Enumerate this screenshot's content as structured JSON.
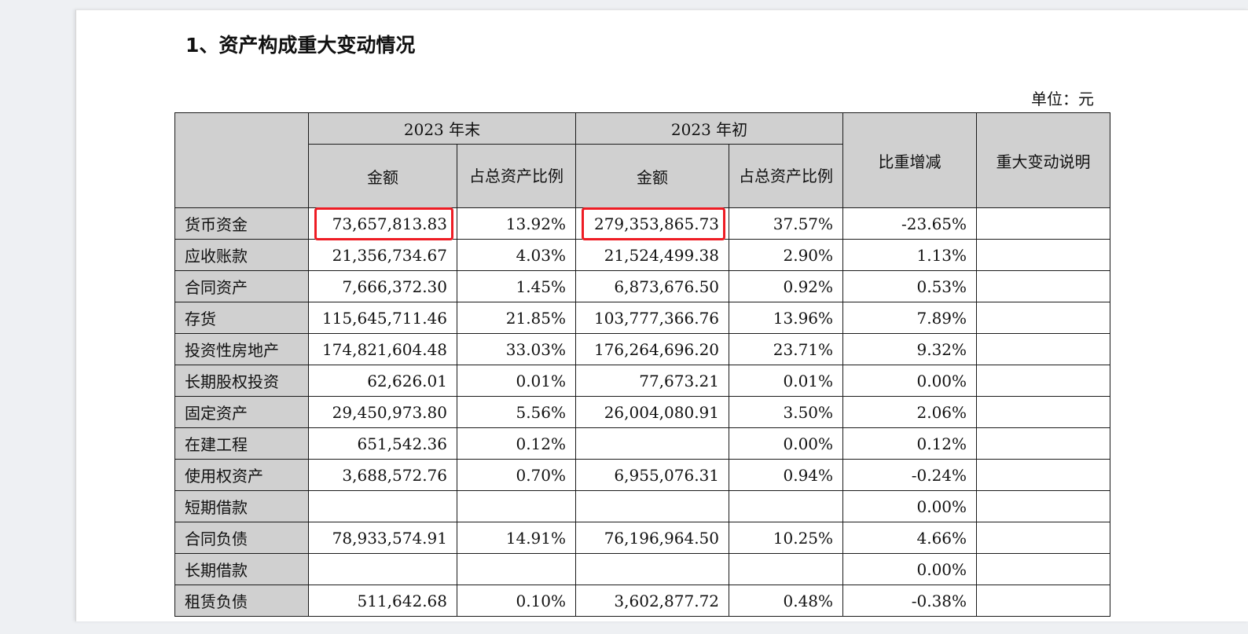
{
  "heading": "1、资产构成重大变动情况",
  "unit": "单位：元",
  "columns": {
    "end_2023": "2023 年末",
    "begin_2023": "2023 年初",
    "amount": "金额",
    "ratio": "占总资产比例",
    "change": "比重增减",
    "explanation": "重大变动说明"
  },
  "rows": [
    {
      "item": "货币资金",
      "end_amount": "73,657,813.83",
      "end_ratio": "13.92%",
      "begin_amount": "279,353,865.73",
      "begin_ratio": "37.57%",
      "change": "-23.65%",
      "note": ""
    },
    {
      "item": "应收账款",
      "end_amount": "21,356,734.67",
      "end_ratio": "4.03%",
      "begin_amount": "21,524,499.38",
      "begin_ratio": "2.90%",
      "change": "1.13%",
      "note": ""
    },
    {
      "item": "合同资产",
      "end_amount": "7,666,372.30",
      "end_ratio": "1.45%",
      "begin_amount": "6,873,676.50",
      "begin_ratio": "0.92%",
      "change": "0.53%",
      "note": ""
    },
    {
      "item": "存货",
      "end_amount": "115,645,711.46",
      "end_ratio": "21.85%",
      "begin_amount": "103,777,366.76",
      "begin_ratio": "13.96%",
      "change": "7.89%",
      "note": ""
    },
    {
      "item": "投资性房地产",
      "end_amount": "174,821,604.48",
      "end_ratio": "33.03%",
      "begin_amount": "176,264,696.20",
      "begin_ratio": "23.71%",
      "change": "9.32%",
      "note": ""
    },
    {
      "item": "长期股权投资",
      "end_amount": "62,626.01",
      "end_ratio": "0.01%",
      "begin_amount": "77,673.21",
      "begin_ratio": "0.01%",
      "change": "0.00%",
      "note": ""
    },
    {
      "item": "固定资产",
      "end_amount": "29,450,973.80",
      "end_ratio": "5.56%",
      "begin_amount": "26,004,080.91",
      "begin_ratio": "3.50%",
      "change": "2.06%",
      "note": ""
    },
    {
      "item": "在建工程",
      "end_amount": "651,542.36",
      "end_ratio": "0.12%",
      "begin_amount": "",
      "begin_ratio": "0.00%",
      "change": "0.12%",
      "note": ""
    },
    {
      "item": "使用权资产",
      "end_amount": "3,688,572.76",
      "end_ratio": "0.70%",
      "begin_amount": "6,955,076.31",
      "begin_ratio": "0.94%",
      "change": "-0.24%",
      "note": ""
    },
    {
      "item": "短期借款",
      "end_amount": "",
      "end_ratio": "",
      "begin_amount": "",
      "begin_ratio": "",
      "change": "0.00%",
      "note": ""
    },
    {
      "item": "合同负债",
      "end_amount": "78,933,574.91",
      "end_ratio": "14.91%",
      "begin_amount": "76,196,964.50",
      "begin_ratio": "10.25%",
      "change": "4.66%",
      "note": ""
    },
    {
      "item": "长期借款",
      "end_amount": "",
      "end_ratio": "",
      "begin_amount": "",
      "begin_ratio": "",
      "change": "0.00%",
      "note": ""
    },
    {
      "item": "租赁负债",
      "end_amount": "511,642.68",
      "end_ratio": "0.10%",
      "begin_amount": "3,602,877.72",
      "begin_ratio": "0.48%",
      "change": "-0.38%",
      "note": ""
    }
  ],
  "highlight_color": "#ee1c24"
}
